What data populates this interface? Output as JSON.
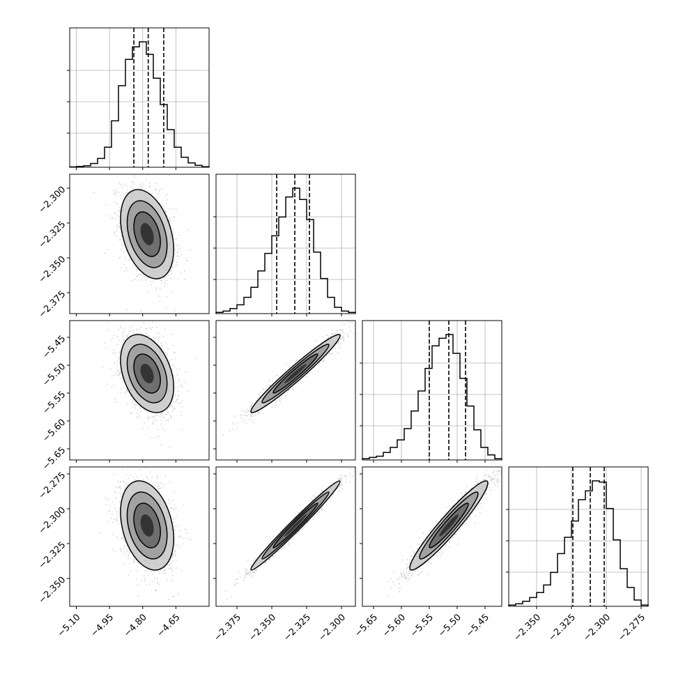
{
  "chart_data": {
    "type": "corner",
    "grid": true,
    "parameters": [
      {
        "index": 0,
        "range": [
          -5.13,
          -4.5
        ],
        "ticks": [
          -5.1,
          -4.95,
          -4.8,
          -4.65
        ],
        "tick_labels": [
          "−5.10",
          "−4.95",
          "−4.80",
          "−4.65"
        ],
        "quantiles": [
          -4.84,
          -4.775,
          -4.705
        ],
        "histogram": [
          0.003,
          0.006,
          0.012,
          0.03,
          0.07,
          0.16,
          0.37,
          0.65,
          0.86,
          0.96,
          1.0,
          0.9,
          0.71,
          0.5,
          0.3,
          0.16,
          0.08,
          0.035,
          0.015,
          0.004
        ]
      },
      {
        "index": 1,
        "range": [
          -2.39,
          -2.29
        ],
        "ticks": [
          -2.375,
          -2.35,
          -2.325,
          -2.3
        ],
        "tick_labels": [
          "−2.375",
          "−2.350",
          "−2.325",
          "−2.300"
        ],
        "quantiles": [
          -2.3465,
          -2.3335,
          -2.323
        ],
        "histogram": [
          0.01,
          0.02,
          0.04,
          0.07,
          0.13,
          0.21,
          0.34,
          0.48,
          0.62,
          0.77,
          0.93,
          1.0,
          0.91,
          0.75,
          0.49,
          0.28,
          0.13,
          0.05,
          0.02,
          0.01
        ]
      },
      {
        "index": 2,
        "range": [
          -5.67,
          -5.42
        ],
        "ticks": [
          -5.65,
          -5.6,
          -5.55,
          -5.5,
          -5.45
        ],
        "tick_labels": [
          "−5.65",
          "−5.60",
          "−5.55",
          "−5.50",
          "−5.45"
        ],
        "quantiles": [
          -5.55,
          -5.515,
          -5.485
        ],
        "histogram": [
          0.01,
          0.02,
          0.03,
          0.06,
          0.1,
          0.16,
          0.25,
          0.39,
          0.55,
          0.73,
          0.91,
          0.97,
          1.0,
          0.85,
          0.65,
          0.43,
          0.24,
          0.1,
          0.04,
          0.01
        ]
      },
      {
        "index": 3,
        "range": [
          -2.37,
          -2.27
        ],
        "ticks": [
          -2.35,
          -2.325,
          -2.3,
          -2.275
        ],
        "tick_labels": [
          "−2.350",
          "−2.325",
          "−2.300",
          "−2.275"
        ],
        "quantiles": [
          -2.324,
          -2.3115,
          -2.3015
        ],
        "histogram": [
          0.01,
          0.02,
          0.04,
          0.07,
          0.11,
          0.17,
          0.27,
          0.42,
          0.55,
          0.68,
          0.85,
          0.92,
          1.0,
          0.99,
          0.78,
          0.53,
          0.3,
          0.15,
          0.05,
          0.01
        ]
      }
    ],
    "pairs": [
      {
        "x": 0,
        "y": 1,
        "mean": [
          -4.78,
          -2.333
        ],
        "sd": [
          0.06,
          0.016
        ],
        "corr": -0.35
      },
      {
        "x": 0,
        "y": 2,
        "mean": [
          -4.78,
          -5.515
        ],
        "sd": [
          0.06,
          0.035
        ],
        "corr": -0.35
      },
      {
        "x": 0,
        "y": 3,
        "mean": [
          -4.78,
          -2.312
        ],
        "sd": [
          0.06,
          0.016
        ],
        "corr": -0.3
      },
      {
        "x": 1,
        "y": 2,
        "mean": [
          -2.333,
          -5.515
        ],
        "sd": [
          0.016,
          0.035
        ],
        "corr": 0.97
      },
      {
        "x": 1,
        "y": 3,
        "mean": [
          -2.333,
          -2.312
        ],
        "sd": [
          0.016,
          0.016
        ],
        "corr": 0.985
      },
      {
        "x": 2,
        "y": 3,
        "mean": [
          -5.515,
          -2.312
        ],
        "sd": [
          0.035,
          0.016
        ],
        "corr": 0.95
      }
    ],
    "contour_levels_sigma": [
      0.5,
      1.0,
      1.5,
      2.0
    ],
    "colors": {
      "line": "#000000",
      "points": "#7f7f7f",
      "grid": "#b0b0b0"
    }
  }
}
